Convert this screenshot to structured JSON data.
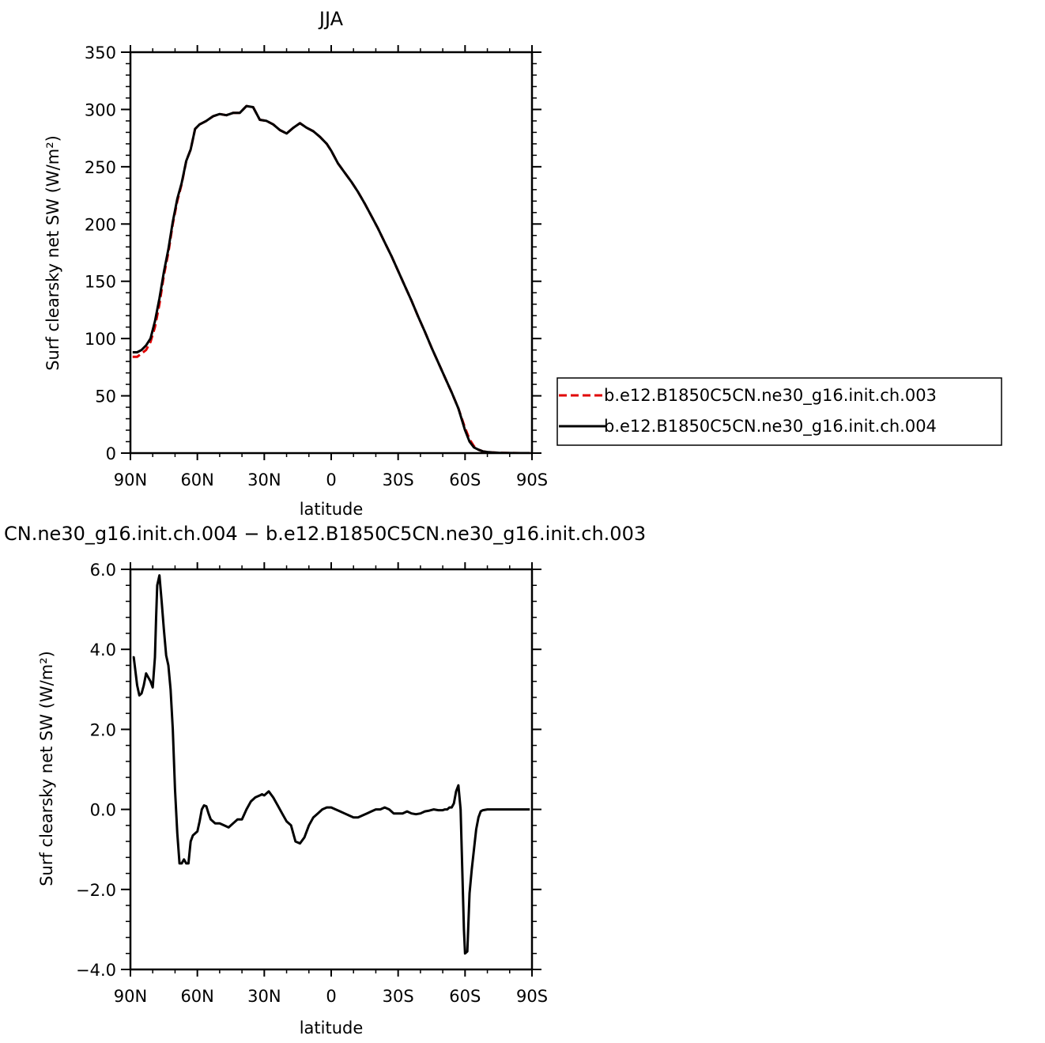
{
  "chart_data": [
    {
      "type": "line",
      "title": "JJA",
      "xlabel": "latitude",
      "ylabel": "Surf clearsky net SW (W/m²)",
      "xlim": [
        90,
        -90
      ],
      "ylim": [
        0,
        350
      ],
      "xticks": [
        90,
        60,
        30,
        0,
        -30,
        -60,
        -90
      ],
      "xtick_labels": [
        "90N",
        "60N",
        "30N",
        "0",
        "30S",
        "60S",
        "90S"
      ],
      "yticks": [
        0,
        50,
        100,
        150,
        200,
        250,
        300,
        350
      ],
      "ytick_labels": [
        "0",
        "50",
        "100",
        "150",
        "200",
        "250",
        "300",
        "350"
      ],
      "legend_position": "right",
      "series": [
        {
          "name": "b.e12.B1850C5CN.ne30_g16.init.ch.003",
          "color": "#e00000",
          "dash": "dashed",
          "x": [
            89,
            87,
            85,
            83,
            81,
            79,
            77,
            75,
            73,
            71,
            69,
            67,
            65,
            63,
            61,
            59,
            56,
            53,
            50,
            47,
            44,
            41,
            38,
            35,
            32,
            29,
            26,
            23,
            20,
            17,
            14,
            11,
            8,
            5,
            2,
            0,
            -3,
            -6,
            -9,
            -12,
            -15,
            -18,
            -21,
            -24,
            -27,
            -30,
            -33,
            -36,
            -39,
            -42,
            -45,
            -48,
            -51,
            -54,
            -57,
            -60,
            -62,
            -64,
            -66,
            -68,
            -70,
            -72,
            -75,
            -80,
            -85,
            -89
          ],
          "y": [
            84,
            84,
            87,
            90,
            97,
            110,
            130,
            155,
            175,
            200,
            220,
            235,
            255,
            265,
            283,
            287,
            290,
            294,
            296,
            295,
            297,
            297,
            303,
            302,
            291,
            290,
            287,
            282,
            279,
            284,
            288,
            284,
            281,
            276,
            270,
            264,
            253,
            245,
            237,
            228,
            218,
            207,
            196,
            184,
            172,
            159,
            146,
            133,
            119,
            106,
            92,
            79,
            66,
            53,
            39,
            22,
            12,
            6,
            3,
            1.5,
            1,
            0.6,
            0.3,
            0.1,
            0,
            0
          ]
        },
        {
          "name": "b.e12.B1850C5CN.ne30_g16.init.ch.004",
          "color": "#000000",
          "dash": "solid",
          "x": [
            89,
            87,
            85,
            83,
            81,
            79,
            77,
            75,
            73,
            71,
            69,
            67,
            65,
            63,
            61,
            59,
            56,
            53,
            50,
            47,
            44,
            41,
            38,
            35,
            32,
            29,
            26,
            23,
            20,
            17,
            14,
            11,
            8,
            5,
            2,
            0,
            -3,
            -6,
            -9,
            -12,
            -15,
            -18,
            -21,
            -24,
            -27,
            -30,
            -33,
            -36,
            -39,
            -42,
            -45,
            -48,
            -51,
            -54,
            -57,
            -60,
            -62,
            -64,
            -66,
            -68,
            -70,
            -72,
            -75,
            -80,
            -85,
            -89
          ],
          "y": [
            88,
            88,
            90,
            94,
            100,
            115,
            135,
            158,
            178,
            202,
            222,
            236,
            255,
            265,
            283,
            287,
            290,
            294,
            296,
            295,
            297,
            297,
            303,
            302,
            291,
            290,
            287,
            282,
            279,
            284,
            288,
            284,
            281,
            276,
            270,
            264,
            253,
            245,
            237,
            228,
            218,
            207,
            196,
            184,
            172,
            159,
            146,
            133,
            119,
            106,
            92,
            79,
            66,
            53,
            39,
            20,
            10,
            5,
            3,
            1.5,
            1,
            0.6,
            0.3,
            0.1,
            0,
            0
          ]
        }
      ]
    },
    {
      "type": "line",
      "title": "CN.ne30_g16.init.ch.004 − b.e12.B1850C5CN.ne30_g16.init.ch.003",
      "xlabel": "latitude",
      "ylabel": "Surf clearsky net SW (W/m²)",
      "xlim": [
        90,
        -90
      ],
      "ylim": [
        -4.0,
        6.0
      ],
      "xticks": [
        90,
        60,
        30,
        0,
        -30,
        -60,
        -90
      ],
      "xtick_labels": [
        "90N",
        "60N",
        "30N",
        "0",
        "30S",
        "60S",
        "90S"
      ],
      "yticks": [
        -4.0,
        -2.0,
        0.0,
        2.0,
        4.0,
        6.0
      ],
      "ytick_labels": [
        "−4.0",
        "−2.0",
        "0.0",
        "2.0",
        "4.0",
        "6.0"
      ],
      "series": [
        {
          "name": "",
          "color": "#000000",
          "dash": "solid",
          "x": [
            89,
            88.5,
            87,
            86,
            85,
            84,
            83,
            81,
            80,
            79,
            78.5,
            78,
            77,
            76,
            75,
            74,
            73,
            72,
            71,
            70,
            69,
            68,
            67,
            66,
            65,
            64,
            63,
            62,
            61,
            60,
            59,
            58,
            57,
            56,
            55,
            54,
            52,
            50,
            48,
            46,
            44,
            42,
            40,
            38,
            36,
            34,
            32,
            31,
            30,
            28,
            26,
            24,
            22,
            20,
            18,
            17,
            16,
            14,
            12,
            10,
            8,
            6,
            4,
            2,
            0,
            -2,
            -4,
            -6,
            -8,
            -10,
            -12,
            -14,
            -16,
            -18,
            -20,
            -22,
            -24,
            -26,
            -28,
            -30,
            -32,
            -34,
            -36,
            -38,
            -40,
            -42,
            -44,
            -46,
            -48,
            -50,
            -51,
            -52,
            -53,
            -54,
            -55,
            -56,
            -57,
            -58,
            -58.5,
            -59,
            -59.5,
            -60,
            -61,
            -62,
            -63,
            -64,
            -65,
            -66,
            -67,
            -68,
            -69,
            -70,
            -72,
            -75,
            -80,
            -85,
            -89
          ],
          "y": [
            3.8,
            3.8,
            3.1,
            2.85,
            2.9,
            3.1,
            3.4,
            3.2,
            3.05,
            3.8,
            4.8,
            5.6,
            5.85,
            5.2,
            4.5,
            3.85,
            3.6,
            3.0,
            2.0,
            0.5,
            -0.6,
            -1.35,
            -1.35,
            -1.25,
            -1.35,
            -1.35,
            -0.8,
            -0.65,
            -0.6,
            -0.55,
            -0.3,
            0.0,
            0.1,
            0.08,
            -0.1,
            -0.25,
            -0.35,
            -0.35,
            -0.4,
            -0.45,
            -0.35,
            -0.25,
            -0.25,
            0.0,
            0.2,
            0.3,
            0.35,
            0.38,
            0.35,
            0.45,
            0.3,
            0.1,
            -0.1,
            -0.3,
            -0.4,
            -0.6,
            -0.8,
            -0.85,
            -0.7,
            -0.4,
            -0.2,
            -0.1,
            0.0,
            0.05,
            0.05,
            0.0,
            -0.05,
            -0.1,
            -0.15,
            -0.2,
            -0.2,
            -0.15,
            -0.1,
            -0.05,
            0.0,
            0.0,
            0.05,
            0.0,
            -0.1,
            -0.1,
            -0.1,
            -0.05,
            -0.1,
            -0.12,
            -0.1,
            -0.05,
            -0.03,
            0.0,
            -0.02,
            -0.02,
            0.0,
            0.0,
            0.05,
            0.05,
            0.15,
            0.45,
            0.6,
            0.0,
            -1.0,
            -2.0,
            -3.0,
            -3.6,
            -3.55,
            -2.1,
            -1.5,
            -1.0,
            -0.5,
            -0.2,
            -0.05,
            -0.02,
            -0.01,
            0.0,
            0.0,
            0.0,
            0.0,
            0.0,
            0.0
          ]
        }
      ]
    }
  ]
}
